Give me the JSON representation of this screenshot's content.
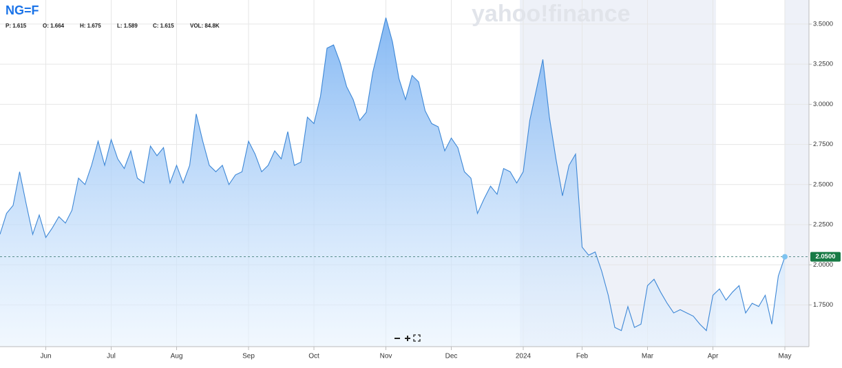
{
  "chart_data": {
    "type": "area",
    "title": "NG=F",
    "watermark": "yahoo!finance",
    "stats": [
      "P: 1.615",
      "O: 1.664",
      "H: 1.675",
      "L: 1.589",
      "C: 1.615",
      "VOL: 84.8K"
    ],
    "categories": [
      null,
      null,
      null,
      null,
      null,
      null,
      null,
      "Jun",
      null,
      null,
      null,
      null,
      null,
      null,
      null,
      null,
      null,
      "Jul",
      null,
      null,
      null,
      null,
      null,
      null,
      null,
      null,
      null,
      "Aug",
      null,
      null,
      null,
      null,
      null,
      null,
      null,
      null,
      null,
      null,
      "Sep",
      null,
      null,
      null,
      null,
      null,
      null,
      null,
      null,
      null,
      "Oct",
      null,
      null,
      null,
      null,
      null,
      null,
      null,
      null,
      null,
      null,
      "Nov",
      null,
      null,
      null,
      null,
      null,
      null,
      null,
      null,
      null,
      "Dec",
      null,
      null,
      null,
      null,
      null,
      null,
      null,
      null,
      null,
      null,
      "2024",
      null,
      null,
      null,
      null,
      null,
      null,
      null,
      null,
      "Feb",
      null,
      null,
      null,
      null,
      null,
      null,
      null,
      null,
      null,
      "Mar",
      null,
      null,
      null,
      null,
      null,
      null,
      null,
      null,
      null,
      "Apr",
      null,
      null,
      null,
      null,
      null,
      null,
      null,
      null,
      null,
      null,
      "May"
    ],
    "series": [
      {
        "name": "NG=F",
        "color": "#3d87d6",
        "values": [
          2.19,
          2.32,
          2.37,
          2.58,
          2.38,
          2.19,
          2.31,
          2.17,
          2.23,
          2.3,
          2.26,
          2.34,
          2.54,
          2.5,
          2.62,
          2.77,
          2.62,
          2.78,
          2.66,
          2.6,
          2.71,
          2.54,
          2.51,
          2.74,
          2.68,
          2.73,
          2.51,
          2.62,
          2.51,
          2.62,
          2.94,
          2.77,
          2.62,
          2.58,
          2.62,
          2.5,
          2.56,
          2.58,
          2.77,
          2.69,
          2.58,
          2.62,
          2.71,
          2.66,
          2.83,
          2.62,
          2.64,
          2.92,
          2.88,
          3.05,
          3.35,
          3.37,
          3.26,
          3.11,
          3.03,
          2.9,
          2.95,
          3.2,
          3.37,
          3.54,
          3.39,
          3.16,
          3.03,
          3.18,
          3.14,
          2.96,
          2.88,
          2.86,
          2.71,
          2.79,
          2.73,
          2.58,
          2.54,
          2.32,
          2.41,
          2.49,
          2.44,
          2.6,
          2.58,
          2.51,
          2.58,
          2.9,
          3.09,
          3.28,
          2.92,
          2.66,
          2.43,
          2.62,
          2.69,
          2.11,
          2.06,
          2.08,
          1.96,
          1.81,
          1.61,
          1.59,
          1.74,
          1.61,
          1.63,
          1.87,
          1.91,
          1.83,
          1.76,
          1.7,
          1.72,
          1.7,
          1.68,
          1.63,
          1.59,
          1.81,
          1.85,
          1.78,
          1.83,
          1.87,
          1.7,
          1.76,
          1.74,
          1.81,
          1.63,
          1.93,
          2.05
        ],
        "value_labels": [
          null,
          null,
          null,
          null,
          null,
          null,
          null,
          null,
          null,
          null,
          null,
          null,
          null,
          null,
          null,
          null,
          null,
          null,
          null,
          null,
          null,
          null,
          null,
          null,
          null,
          null,
          null,
          null,
          null,
          null,
          null,
          null,
          null,
          null,
          null,
          null,
          null,
          null,
          null,
          null,
          null,
          null,
          null,
          null,
          null,
          null,
          null,
          null,
          null,
          null,
          null,
          null,
          null,
          null,
          null,
          null,
          null,
          null,
          null,
          null,
          null,
          null,
          null,
          null,
          null,
          null,
          null,
          null,
          null,
          null,
          null,
          null,
          null,
          null,
          null,
          null,
          null,
          null,
          null,
          null,
          null,
          null,
          null,
          null,
          null,
          null,
          null,
          null,
          null,
          null,
          null,
          null,
          null,
          null,
          null,
          null,
          null,
          null,
          null,
          null,
          null,
          null,
          null,
          null,
          null,
          null,
          null,
          null,
          null,
          null,
          null,
          null,
          null,
          null,
          null,
          null,
          null,
          null,
          null,
          null,
          "2.0500"
        ]
      }
    ],
    "ylim": [
      1.49,
      3.65
    ],
    "yticks": [
      {
        "value": 1.75,
        "label": "1.7500"
      },
      {
        "value": 2,
        "label": "2.0000"
      },
      {
        "value": 2.25,
        "label": "2.2500"
      },
      {
        "value": 2.5,
        "label": "2.5000"
      },
      {
        "value": 2.75,
        "label": "2.7500"
      },
      {
        "value": 3,
        "label": "3.0000"
      },
      {
        "value": 3.25,
        "label": "3.2500"
      },
      {
        "value": 3.5,
        "label": "3.5000"
      }
    ],
    "grid": true,
    "last_price_color": "#177a45"
  }
}
